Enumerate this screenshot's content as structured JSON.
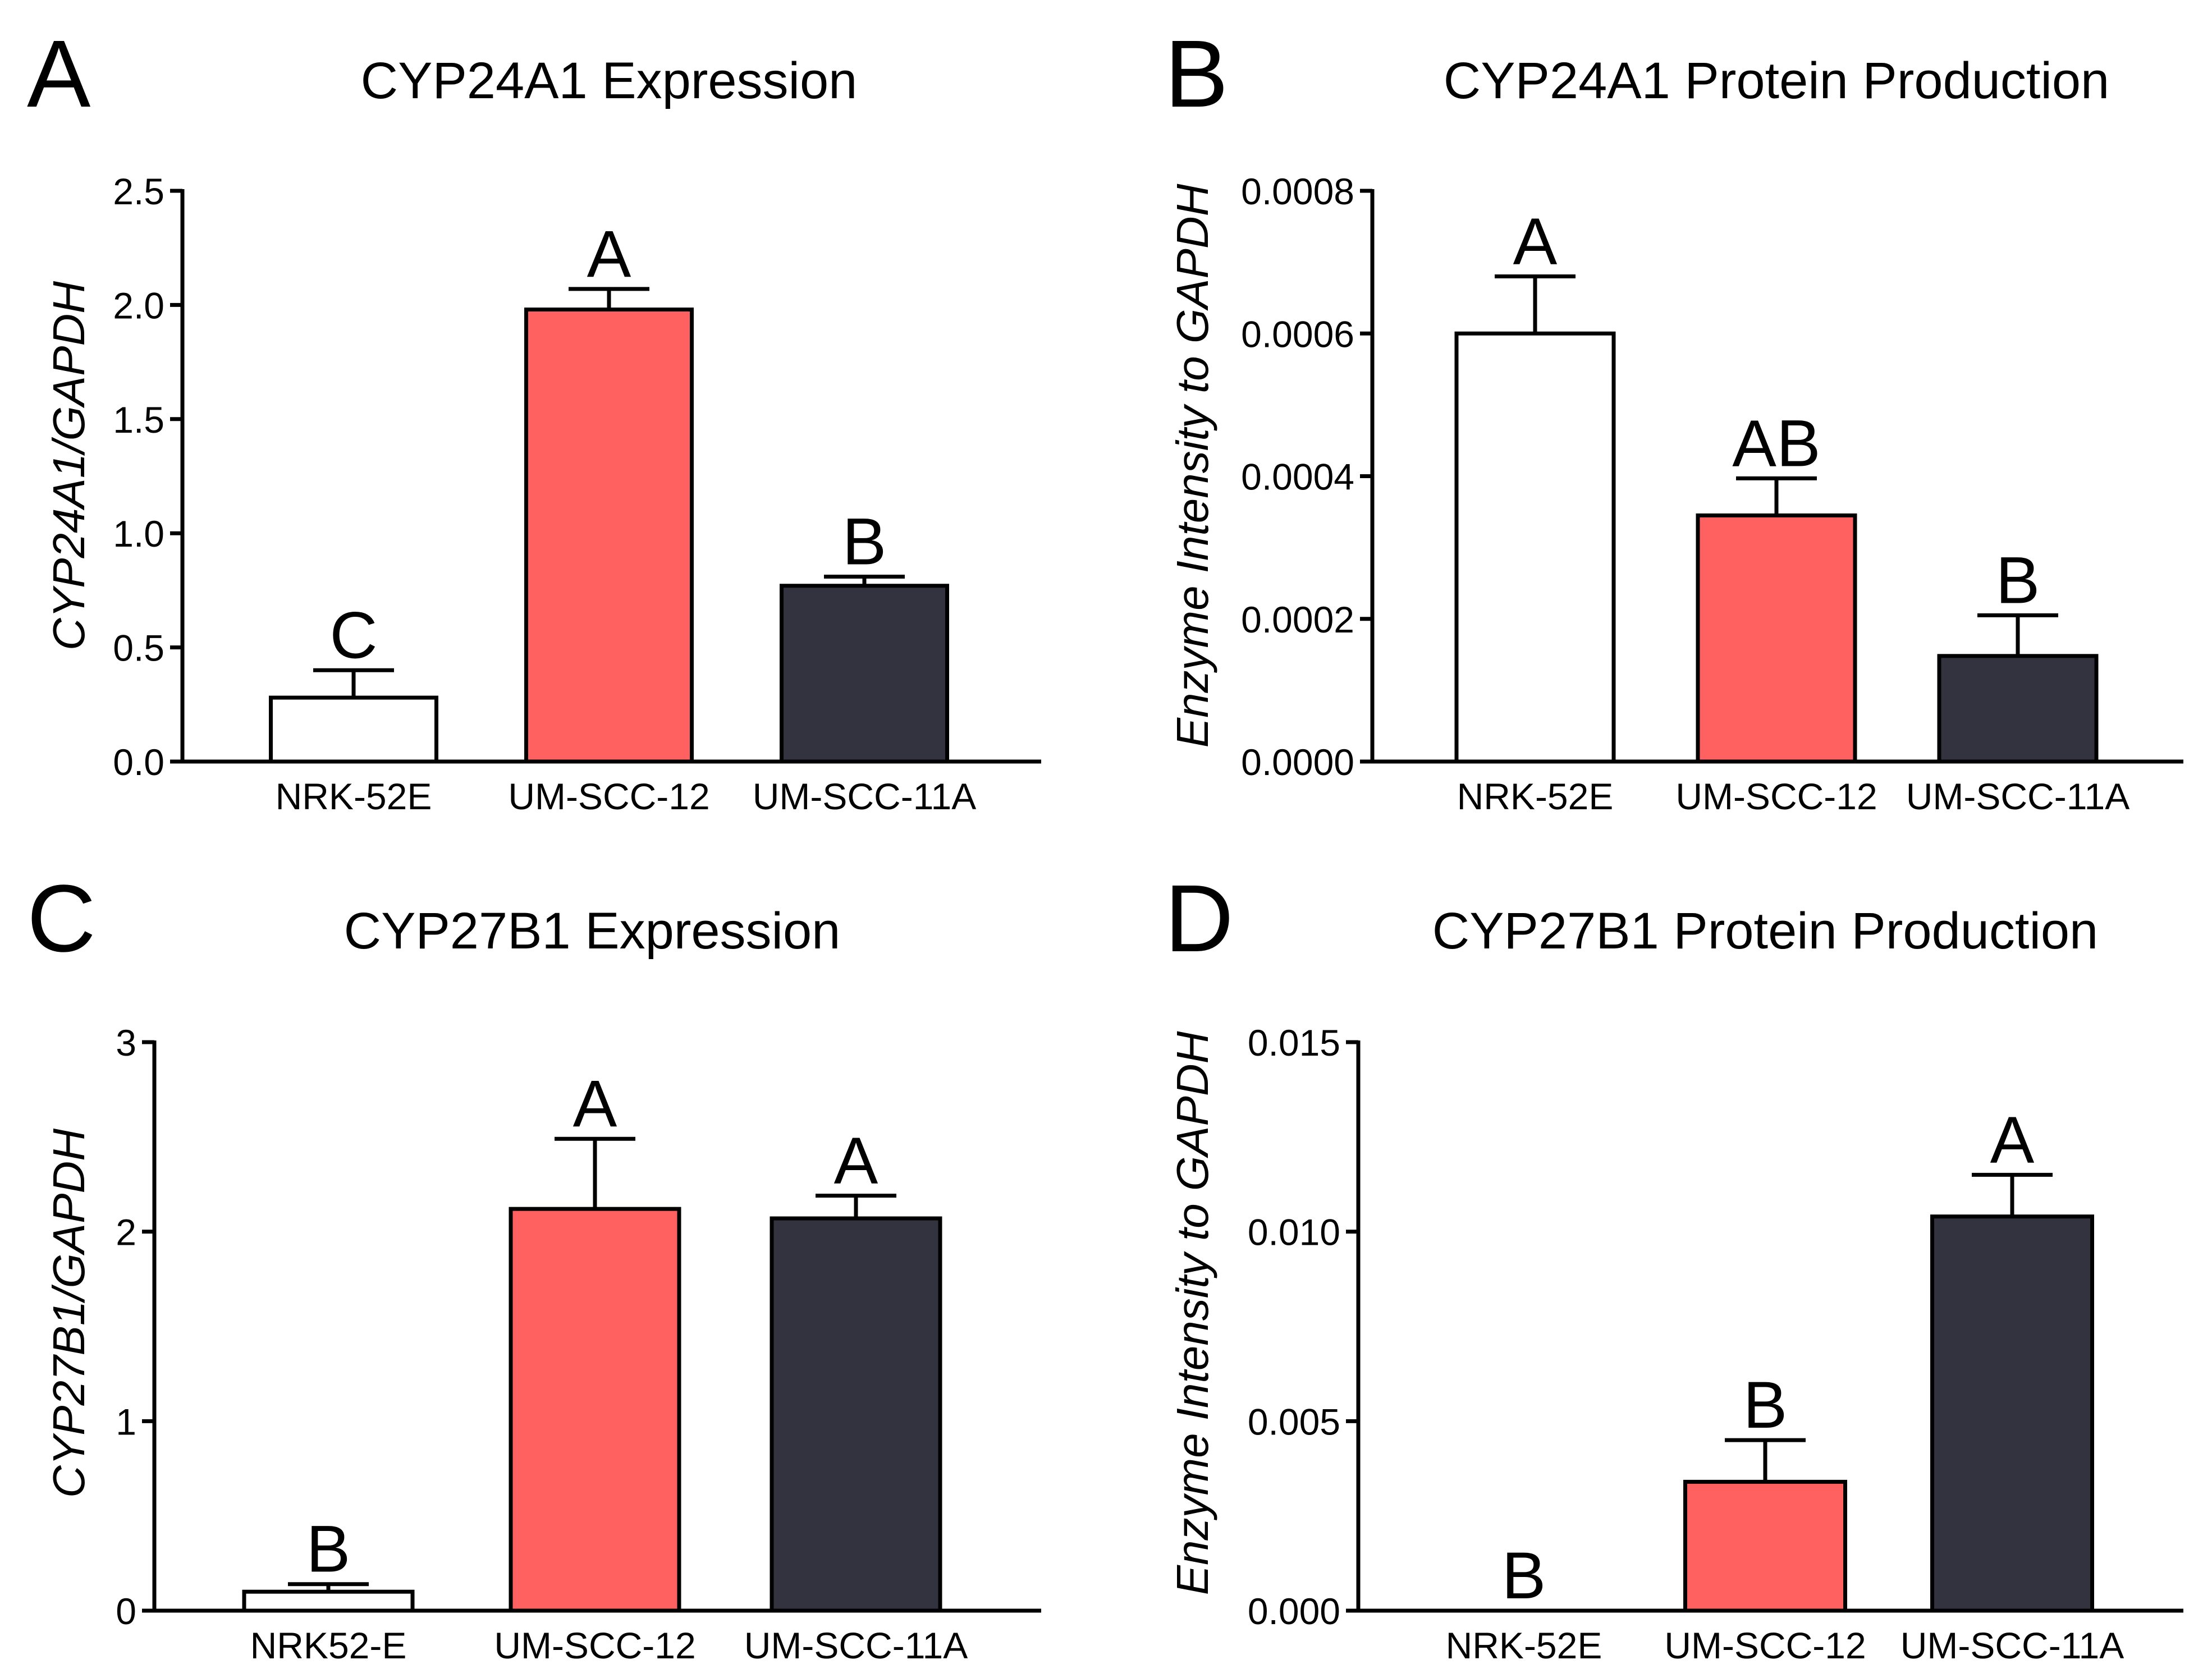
{
  "colors": {
    "bar_fills": [
      "#ffffff",
      "#ff6060",
      "#33333f"
    ],
    "stroke": "#000000"
  },
  "chart_data": [
    {
      "panel": "A",
      "type": "bar",
      "title": "CYP24A1 Expression",
      "ylabel": "CYP24A1/GAPDH",
      "categories": [
        "NRK-52E",
        "UM-SCC-12",
        "UM-SCC-11A"
      ],
      "values": [
        0.28,
        1.98,
        0.77
      ],
      "errors": [
        0.12,
        0.09,
        0.04
      ],
      "significance": [
        "C",
        "A",
        "B"
      ],
      "ylim": [
        0,
        2.5
      ],
      "yticks": [
        0,
        0.5,
        1.0,
        1.5,
        2.0,
        2.5
      ],
      "ytick_labels": [
        "0.0",
        "0.5",
        "1.0",
        "1.5",
        "2.0",
        "2.5"
      ]
    },
    {
      "panel": "B",
      "type": "bar",
      "title": "CYP24A1 Protein Production",
      "ylabel": "Enzyme Intensity to GAPDH",
      "categories": [
        "NRK-52E",
        "UM-SCC-12",
        "UM-SCC-11A"
      ],
      "values": [
        0.0006,
        0.000345,
        0.000148
      ],
      "errors": [
        8e-05,
        5.2e-05,
        5.7e-05
      ],
      "significance": [
        "A",
        "AB",
        "B"
      ],
      "ylim": [
        0,
        0.0008
      ],
      "yticks": [
        0,
        0.0002,
        0.0004,
        0.0006,
        0.0008
      ],
      "ytick_labels": [
        "0.0000",
        "0.0002",
        "0.0004",
        "0.0006",
        "0.0008"
      ]
    },
    {
      "panel": "C",
      "type": "bar",
      "title": "CYP27B1 Expression",
      "ylabel": "CYP27B1/GAPDH",
      "categories": [
        "NRK52-E",
        "UM-SCC-12",
        "UM-SCC-11A"
      ],
      "values": [
        0.1,
        2.12,
        2.07
      ],
      "errors": [
        0.04,
        0.37,
        0.12
      ],
      "significance": [
        "B",
        "A",
        "A"
      ],
      "ylim": [
        0,
        3
      ],
      "yticks": [
        0,
        1,
        2,
        3
      ],
      "ytick_labels": [
        "0",
        "1",
        "2",
        "3"
      ]
    },
    {
      "panel": "D",
      "type": "bar",
      "title": "CYP27B1 Protein Production",
      "ylabel": "Enzyme Intensity to GAPDH",
      "categories": [
        "NRK-52E",
        "UM-SCC-12",
        "UM-SCC-11A"
      ],
      "values": [
        0,
        0.0034,
        0.0104
      ],
      "errors": [
        0,
        0.0011,
        0.0011
      ],
      "significance": [
        "B",
        "B",
        "A"
      ],
      "ylim": [
        0,
        0.015
      ],
      "yticks": [
        0,
        0.005,
        0.01,
        0.015
      ],
      "ytick_labels": [
        "0.000",
        "0.005",
        "0.010",
        "0.015"
      ]
    }
  ]
}
